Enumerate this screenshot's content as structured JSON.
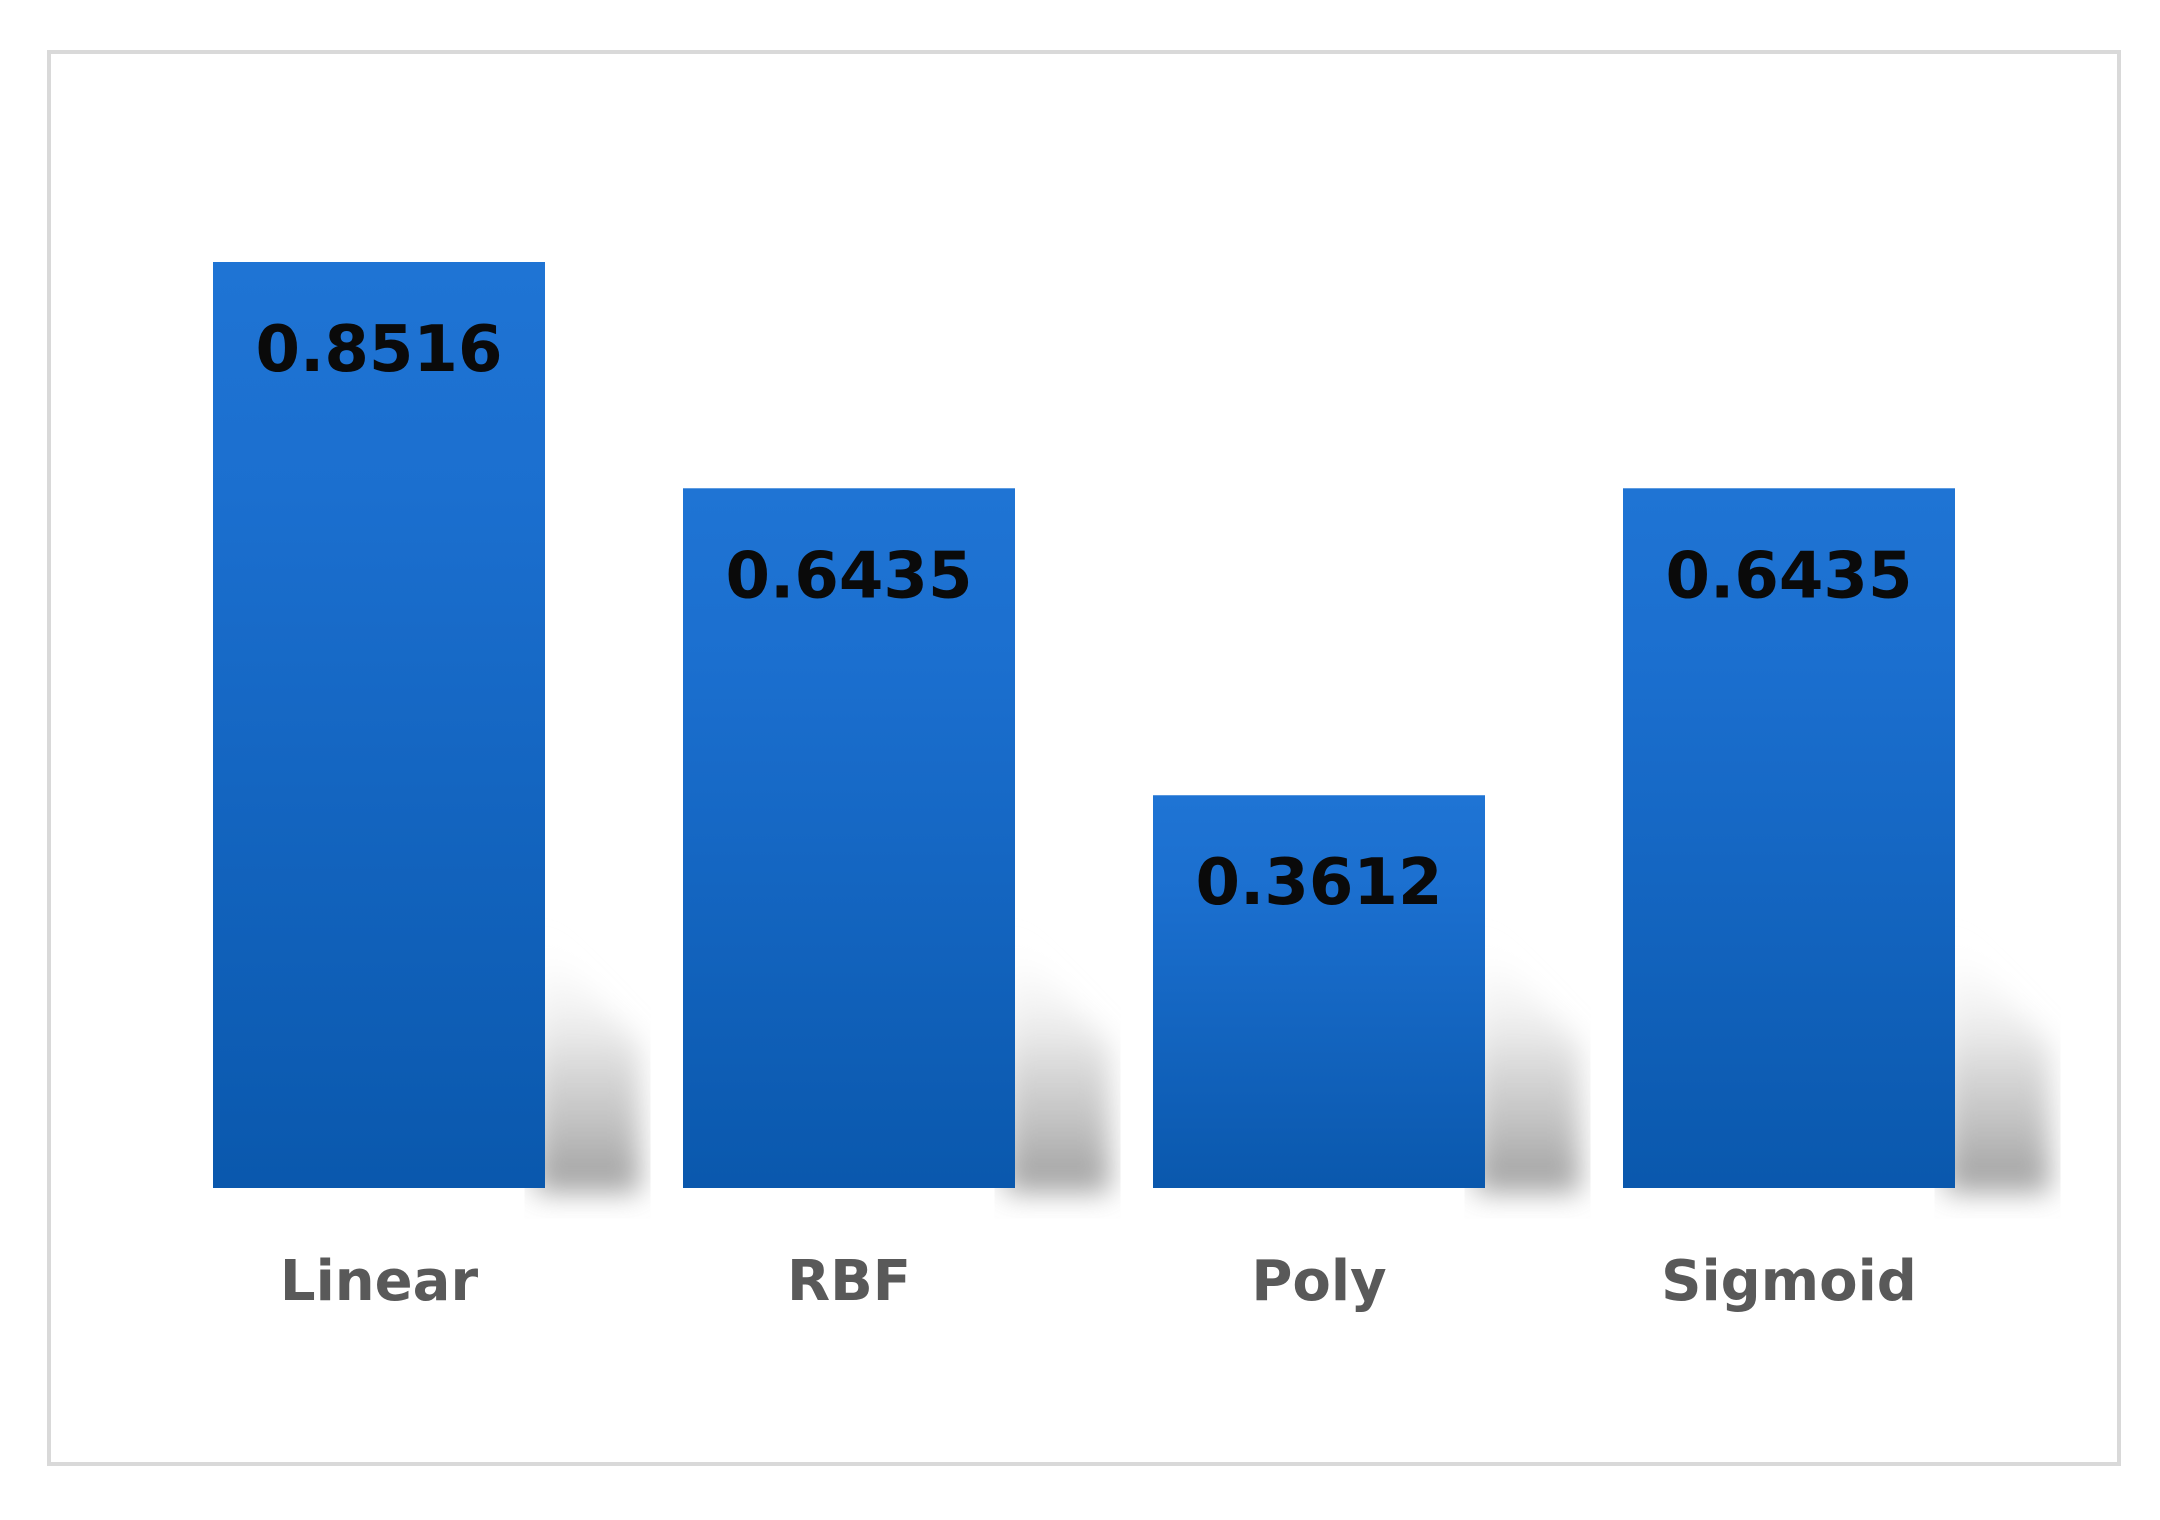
{
  "chart_data": {
    "type": "bar",
    "categories": [
      "Linear",
      "RBF",
      "Poly",
      "Sigmoid"
    ],
    "values": [
      0.8516,
      0.6435,
      0.3612,
      0.6435
    ],
    "value_labels": [
      "0.8516",
      "0.6435",
      "0.3612",
      "0.6435"
    ],
    "title": "",
    "xlabel": "",
    "ylabel": "",
    "ylim": [
      0,
      1
    ],
    "grid": false,
    "legend": "none",
    "colors": {
      "bar_top": "#1f74d4",
      "bar_bottom": "#0a58ad",
      "value_text": "#0a0a0a",
      "category_text": "#595959",
      "frame_border": "#d9d9d9",
      "shadow": "#9a9a9a"
    }
  }
}
